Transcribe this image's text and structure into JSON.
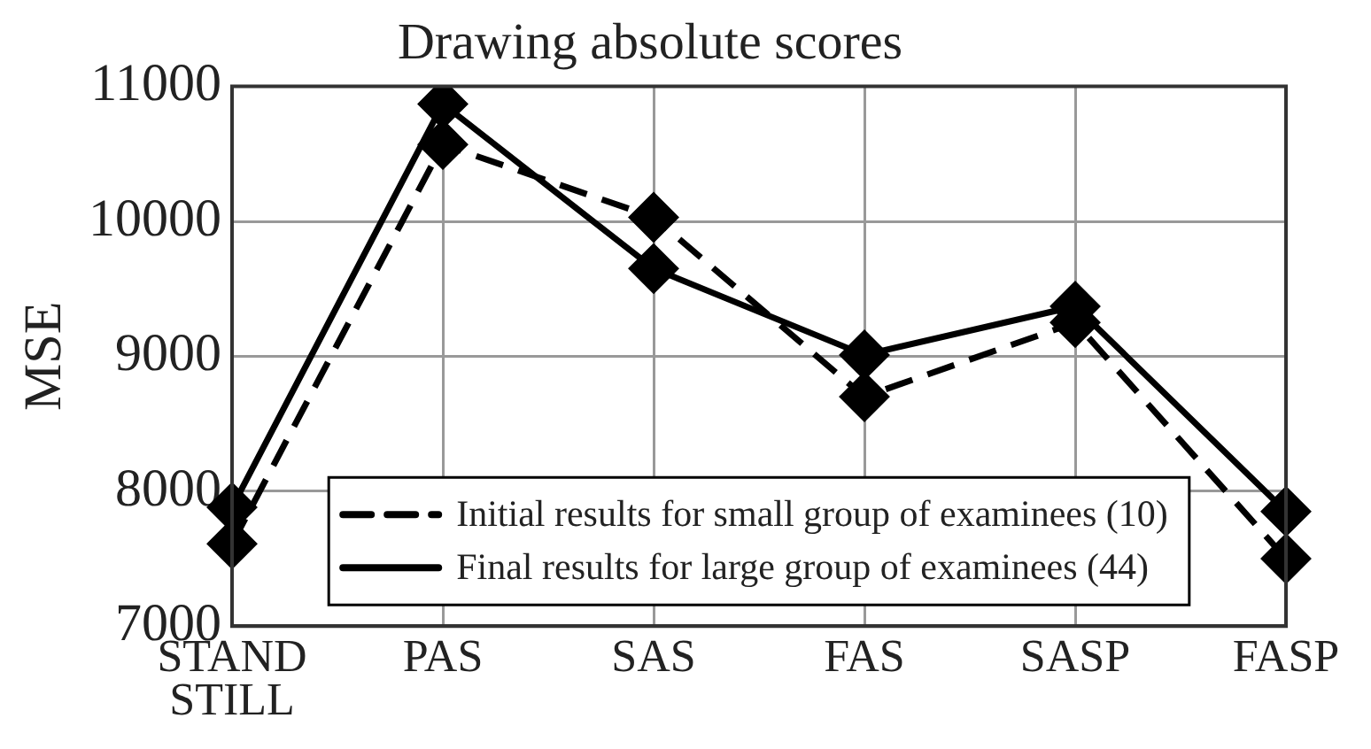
{
  "chart_data": {
    "type": "line",
    "title": "Drawing absolute scores",
    "ylabel": "MSE",
    "categories": [
      "STAND STILL",
      "PAS",
      "SAS",
      "FAS",
      "SASP",
      "FASP"
    ],
    "series": [
      {
        "name": "Initial results for small group of examinees (10)",
        "color": "#000000",
        "line_style": "dashed",
        "values": [
          7610,
          10570,
          10030,
          8700,
          9250,
          7500
        ]
      },
      {
        "name": "Final results for large group of examinees (44)",
        "color": "#000000",
        "line_style": "solid",
        "values": [
          7880,
          10870,
          9650,
          9010,
          9370,
          7850
        ]
      }
    ],
    "ylim": [
      7000,
      11000
    ],
    "yticks": [
      7000,
      8000,
      9000,
      10000,
      11000
    ],
    "grid": true,
    "legend": "bottom",
    "marker": "diamond"
  }
}
